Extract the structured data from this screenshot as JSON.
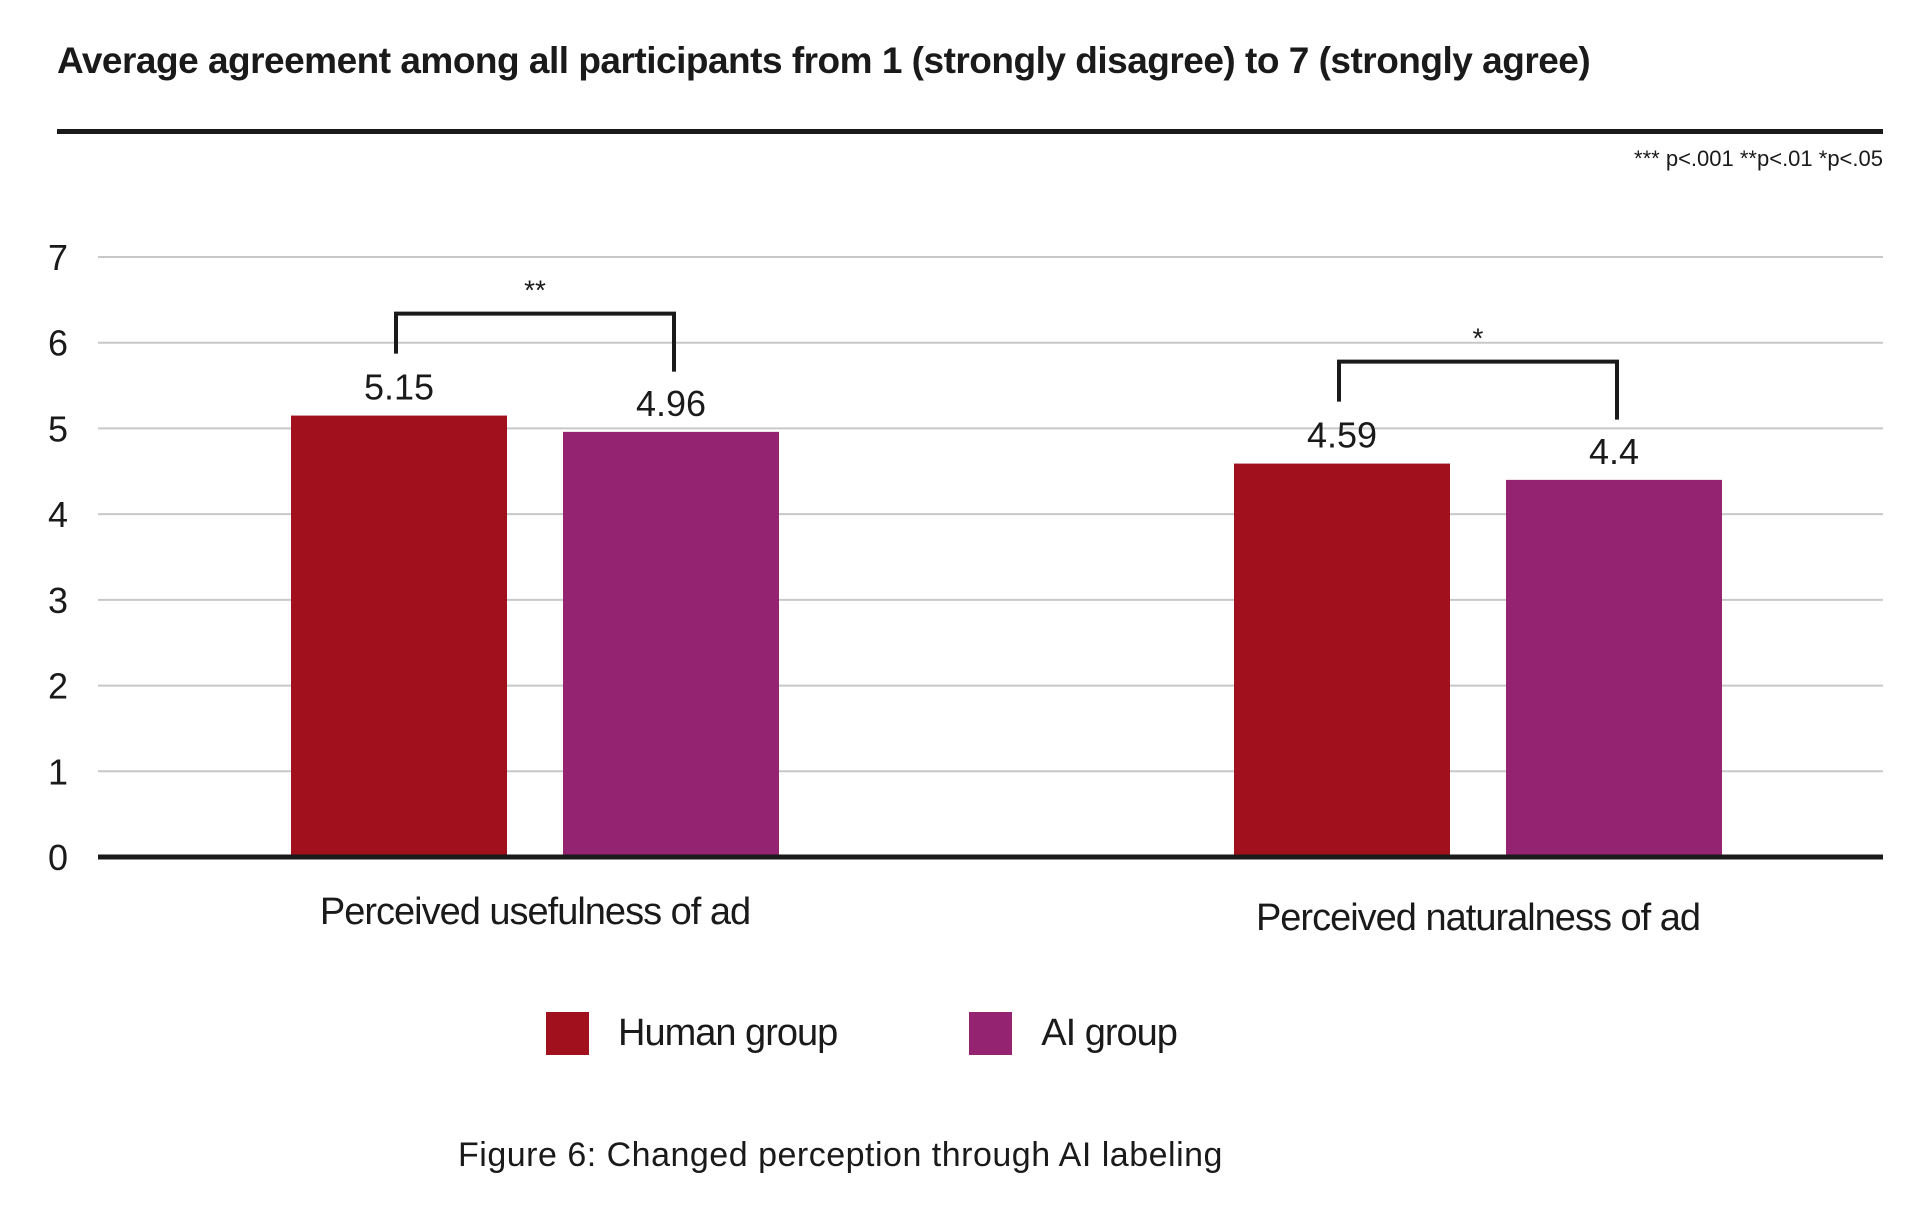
{
  "title": "Average agreement among all participants from 1 (strongly disagree) to 7 (strongly agree)",
  "significance_note": "*** p<.001 **p<.01 *p<.05",
  "caption": "Figure 6: Changed perception through AI labeling",
  "colors": {
    "human": "#a0101d",
    "ai": "#942371",
    "grid": "#c8c8c8",
    "axis": "#1a1a1a"
  },
  "legend": [
    {
      "label": "Human group",
      "color": "#a0101d"
    },
    {
      "label": "AI group",
      "color": "#942371"
    }
  ],
  "chart_data": {
    "type": "bar",
    "categories": [
      "Perceived usefulness of ad",
      "Perceived naturalness of ad"
    ],
    "series": [
      {
        "name": "Human group",
        "values": [
          5.15,
          4.59
        ],
        "labels": [
          "5.15",
          "4.59"
        ]
      },
      {
        "name": "AI group",
        "values": [
          4.96,
          4.4
        ],
        "labels": [
          "4.96",
          "4.4"
        ]
      }
    ],
    "significance": [
      "**",
      "*"
    ],
    "yticks": [
      "0",
      "1",
      "2",
      "3",
      "4",
      "5",
      "6",
      "7"
    ],
    "ylim": [
      0,
      7
    ],
    "grid": true,
    "legend_position": "bottom"
  }
}
